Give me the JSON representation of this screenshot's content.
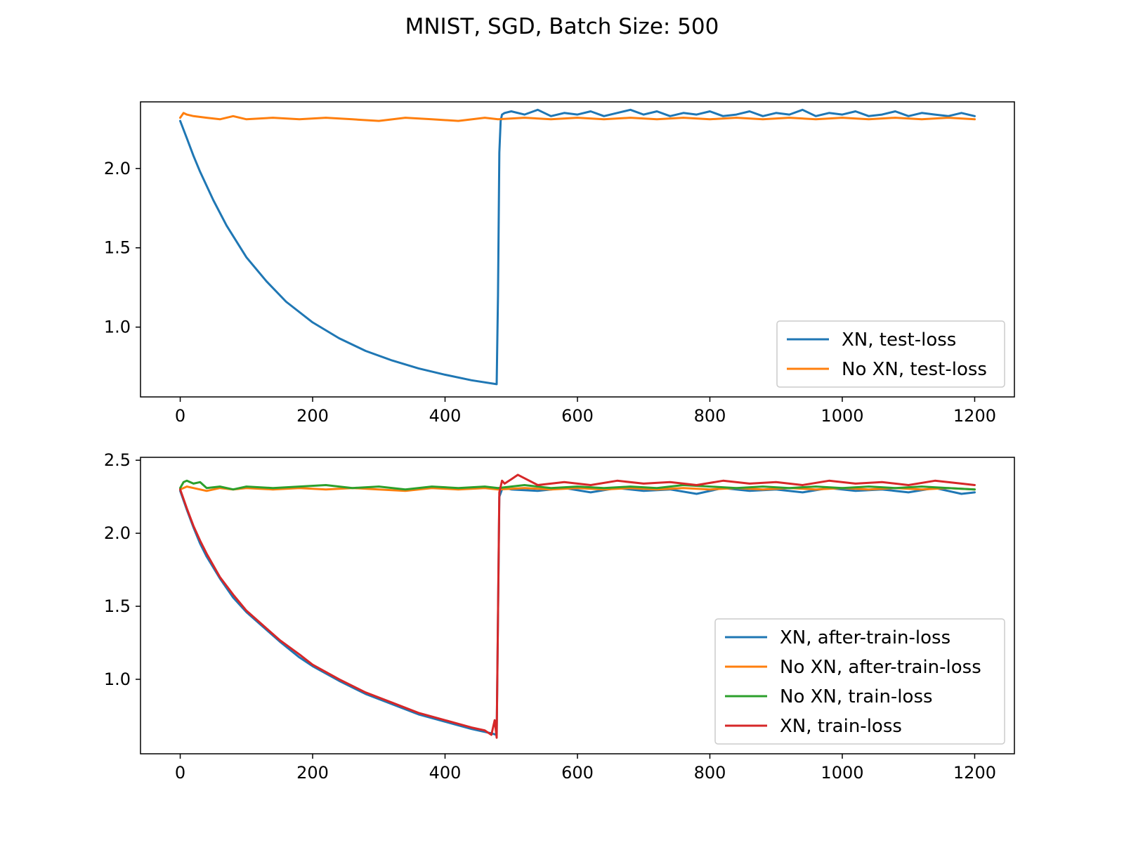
{
  "figure": {
    "title": "MNIST, SGD, Batch Size: 500"
  },
  "colors": {
    "blue": "#1f77b4",
    "orange": "#ff7f0e",
    "green": "#2ca02c",
    "red": "#d62728"
  },
  "chart_data": [
    {
      "type": "line",
      "title": "",
      "xlabel": "",
      "ylabel": "",
      "xlim": [
        -60,
        1260
      ],
      "ylim": [
        0.56,
        2.42
      ],
      "xticks": [
        0,
        200,
        400,
        600,
        800,
        1000,
        1200
      ],
      "yticks": [
        1.0,
        1.5,
        2.0
      ],
      "xtick_labels": [
        "0",
        "200",
        "400",
        "600",
        "800",
        "1000",
        "1200"
      ],
      "ytick_labels": [
        "1.0",
        "1.5",
        "2.0"
      ],
      "grid": false,
      "legend_position": "lower-right",
      "series": [
        {
          "name": "XN, test-loss",
          "color": "#1f77b4",
          "x": [
            0,
            10,
            20,
            30,
            50,
            70,
            100,
            130,
            160,
            200,
            240,
            280,
            320,
            360,
            400,
            440,
            478,
            480,
            482,
            484,
            486,
            490,
            500,
            520,
            540,
            560,
            580,
            600,
            620,
            640,
            660,
            680,
            700,
            720,
            740,
            760,
            780,
            800,
            820,
            840,
            860,
            880,
            900,
            920,
            940,
            960,
            980,
            1000,
            1020,
            1040,
            1060,
            1080,
            1100,
            1120,
            1140,
            1160,
            1180,
            1200
          ],
          "y": [
            2.3,
            2.19,
            2.08,
            1.98,
            1.8,
            1.64,
            1.44,
            1.29,
            1.16,
            1.03,
            0.93,
            0.85,
            0.79,
            0.74,
            0.7,
            0.665,
            0.64,
            1.2,
            2.1,
            2.3,
            2.34,
            2.35,
            2.36,
            2.34,
            2.37,
            2.33,
            2.35,
            2.34,
            2.36,
            2.33,
            2.35,
            2.37,
            2.34,
            2.36,
            2.33,
            2.35,
            2.34,
            2.36,
            2.33,
            2.34,
            2.36,
            2.33,
            2.35,
            2.34,
            2.37,
            2.33,
            2.35,
            2.34,
            2.36,
            2.33,
            2.34,
            2.36,
            2.33,
            2.35,
            2.34,
            2.33,
            2.35,
            2.33
          ]
        },
        {
          "name": "No XN, test-loss",
          "color": "#ff7f0e",
          "x": [
            0,
            5,
            10,
            20,
            40,
            60,
            80,
            100,
            140,
            180,
            220,
            260,
            300,
            340,
            380,
            420,
            460,
            480,
            520,
            560,
            600,
            640,
            680,
            720,
            760,
            800,
            840,
            880,
            920,
            960,
            1000,
            1040,
            1080,
            1120,
            1160,
            1200
          ],
          "y": [
            2.32,
            2.35,
            2.34,
            2.33,
            2.32,
            2.31,
            2.33,
            2.31,
            2.32,
            2.31,
            2.32,
            2.31,
            2.3,
            2.32,
            2.31,
            2.3,
            2.32,
            2.31,
            2.32,
            2.31,
            2.32,
            2.31,
            2.32,
            2.31,
            2.32,
            2.31,
            2.32,
            2.31,
            2.32,
            2.31,
            2.32,
            2.31,
            2.32,
            2.31,
            2.32,
            2.31
          ]
        }
      ]
    },
    {
      "type": "line",
      "title": "",
      "xlabel": "",
      "ylabel": "",
      "xlim": [
        -60,
        1260
      ],
      "ylim": [
        0.49,
        2.52
      ],
      "xticks": [
        0,
        200,
        400,
        600,
        800,
        1000,
        1200
      ],
      "yticks": [
        1.0,
        1.5,
        2.0,
        2.5
      ],
      "xtick_labels": [
        "0",
        "200",
        "400",
        "600",
        "800",
        "1000",
        "1200"
      ],
      "ytick_labels": [
        "1.0",
        "1.5",
        "2.0",
        "2.5"
      ],
      "grid": false,
      "legend_position": "lower-right",
      "series": [
        {
          "name": "XN, after-train-loss",
          "color": "#1f77b4",
          "x": [
            0,
            10,
            20,
            30,
            40,
            60,
            80,
            100,
            120,
            150,
            180,
            200,
            240,
            280,
            320,
            360,
            400,
            440,
            470,
            478,
            482,
            486,
            490,
            500,
            540,
            580,
            620,
            660,
            700,
            740,
            780,
            820,
            860,
            900,
            940,
            980,
            1020,
            1060,
            1100,
            1140,
            1180,
            1200
          ],
          "y": [
            2.29,
            2.16,
            2.04,
            1.93,
            1.84,
            1.69,
            1.56,
            1.46,
            1.38,
            1.26,
            1.15,
            1.09,
            0.99,
            0.9,
            0.83,
            0.76,
            0.71,
            0.66,
            0.63,
            0.62,
            2.25,
            2.3,
            2.31,
            2.3,
            2.29,
            2.31,
            2.28,
            2.31,
            2.29,
            2.3,
            2.27,
            2.31,
            2.29,
            2.3,
            2.28,
            2.31,
            2.29,
            2.3,
            2.28,
            2.31,
            2.27,
            2.28
          ]
        },
        {
          "name": "No XN, after-train-loss",
          "color": "#ff7f0e",
          "x": [
            0,
            10,
            20,
            40,
            60,
            80,
            100,
            140,
            180,
            220,
            260,
            300,
            340,
            380,
            420,
            460,
            480,
            520,
            560,
            600,
            640,
            680,
            720,
            760,
            800,
            840,
            880,
            920,
            960,
            1000,
            1040,
            1080,
            1120,
            1160,
            1200
          ],
          "y": [
            2.3,
            2.32,
            2.31,
            2.29,
            2.31,
            2.3,
            2.31,
            2.3,
            2.31,
            2.3,
            2.31,
            2.3,
            2.29,
            2.31,
            2.3,
            2.31,
            2.3,
            2.31,
            2.3,
            2.31,
            2.3,
            2.31,
            2.3,
            2.31,
            2.3,
            2.31,
            2.3,
            2.31,
            2.3,
            2.31,
            2.3,
            2.31,
            2.3,
            2.31,
            2.3
          ]
        },
        {
          "name": "No XN, train-loss",
          "color": "#2ca02c",
          "x": [
            0,
            5,
            10,
            20,
            30,
            40,
            60,
            80,
            100,
            140,
            180,
            220,
            260,
            300,
            340,
            380,
            420,
            460,
            480,
            520,
            560,
            600,
            640,
            680,
            720,
            760,
            800,
            840,
            880,
            920,
            960,
            1000,
            1040,
            1080,
            1120,
            1160,
            1200
          ],
          "y": [
            2.31,
            2.35,
            2.36,
            2.34,
            2.35,
            2.31,
            2.32,
            2.3,
            2.32,
            2.31,
            2.32,
            2.33,
            2.31,
            2.32,
            2.3,
            2.32,
            2.31,
            2.32,
            2.31,
            2.33,
            2.31,
            2.32,
            2.31,
            2.32,
            2.31,
            2.33,
            2.32,
            2.31,
            2.32,
            2.31,
            2.32,
            2.31,
            2.32,
            2.31,
            2.32,
            2.31,
            2.3
          ]
        },
        {
          "name": "XN, train-loss",
          "color": "#d62728",
          "x": [
            0,
            10,
            20,
            30,
            40,
            60,
            80,
            100,
            120,
            150,
            180,
            200,
            240,
            280,
            320,
            360,
            400,
            440,
            460,
            470,
            475,
            478,
            482,
            486,
            490,
            500,
            510,
            540,
            580,
            620,
            660,
            700,
            740,
            780,
            820,
            860,
            900,
            940,
            980,
            1020,
            1060,
            1100,
            1140,
            1180,
            1200
          ],
          "y": [
            2.3,
            2.17,
            2.05,
            1.95,
            1.86,
            1.7,
            1.58,
            1.47,
            1.39,
            1.27,
            1.17,
            1.1,
            1.0,
            0.91,
            0.84,
            0.77,
            0.72,
            0.67,
            0.65,
            0.62,
            0.72,
            0.6,
            2.28,
            2.36,
            2.34,
            2.37,
            2.4,
            2.33,
            2.35,
            2.33,
            2.36,
            2.34,
            2.35,
            2.33,
            2.36,
            2.34,
            2.35,
            2.33,
            2.36,
            2.34,
            2.35,
            2.33,
            2.36,
            2.34,
            2.33
          ]
        }
      ]
    }
  ]
}
